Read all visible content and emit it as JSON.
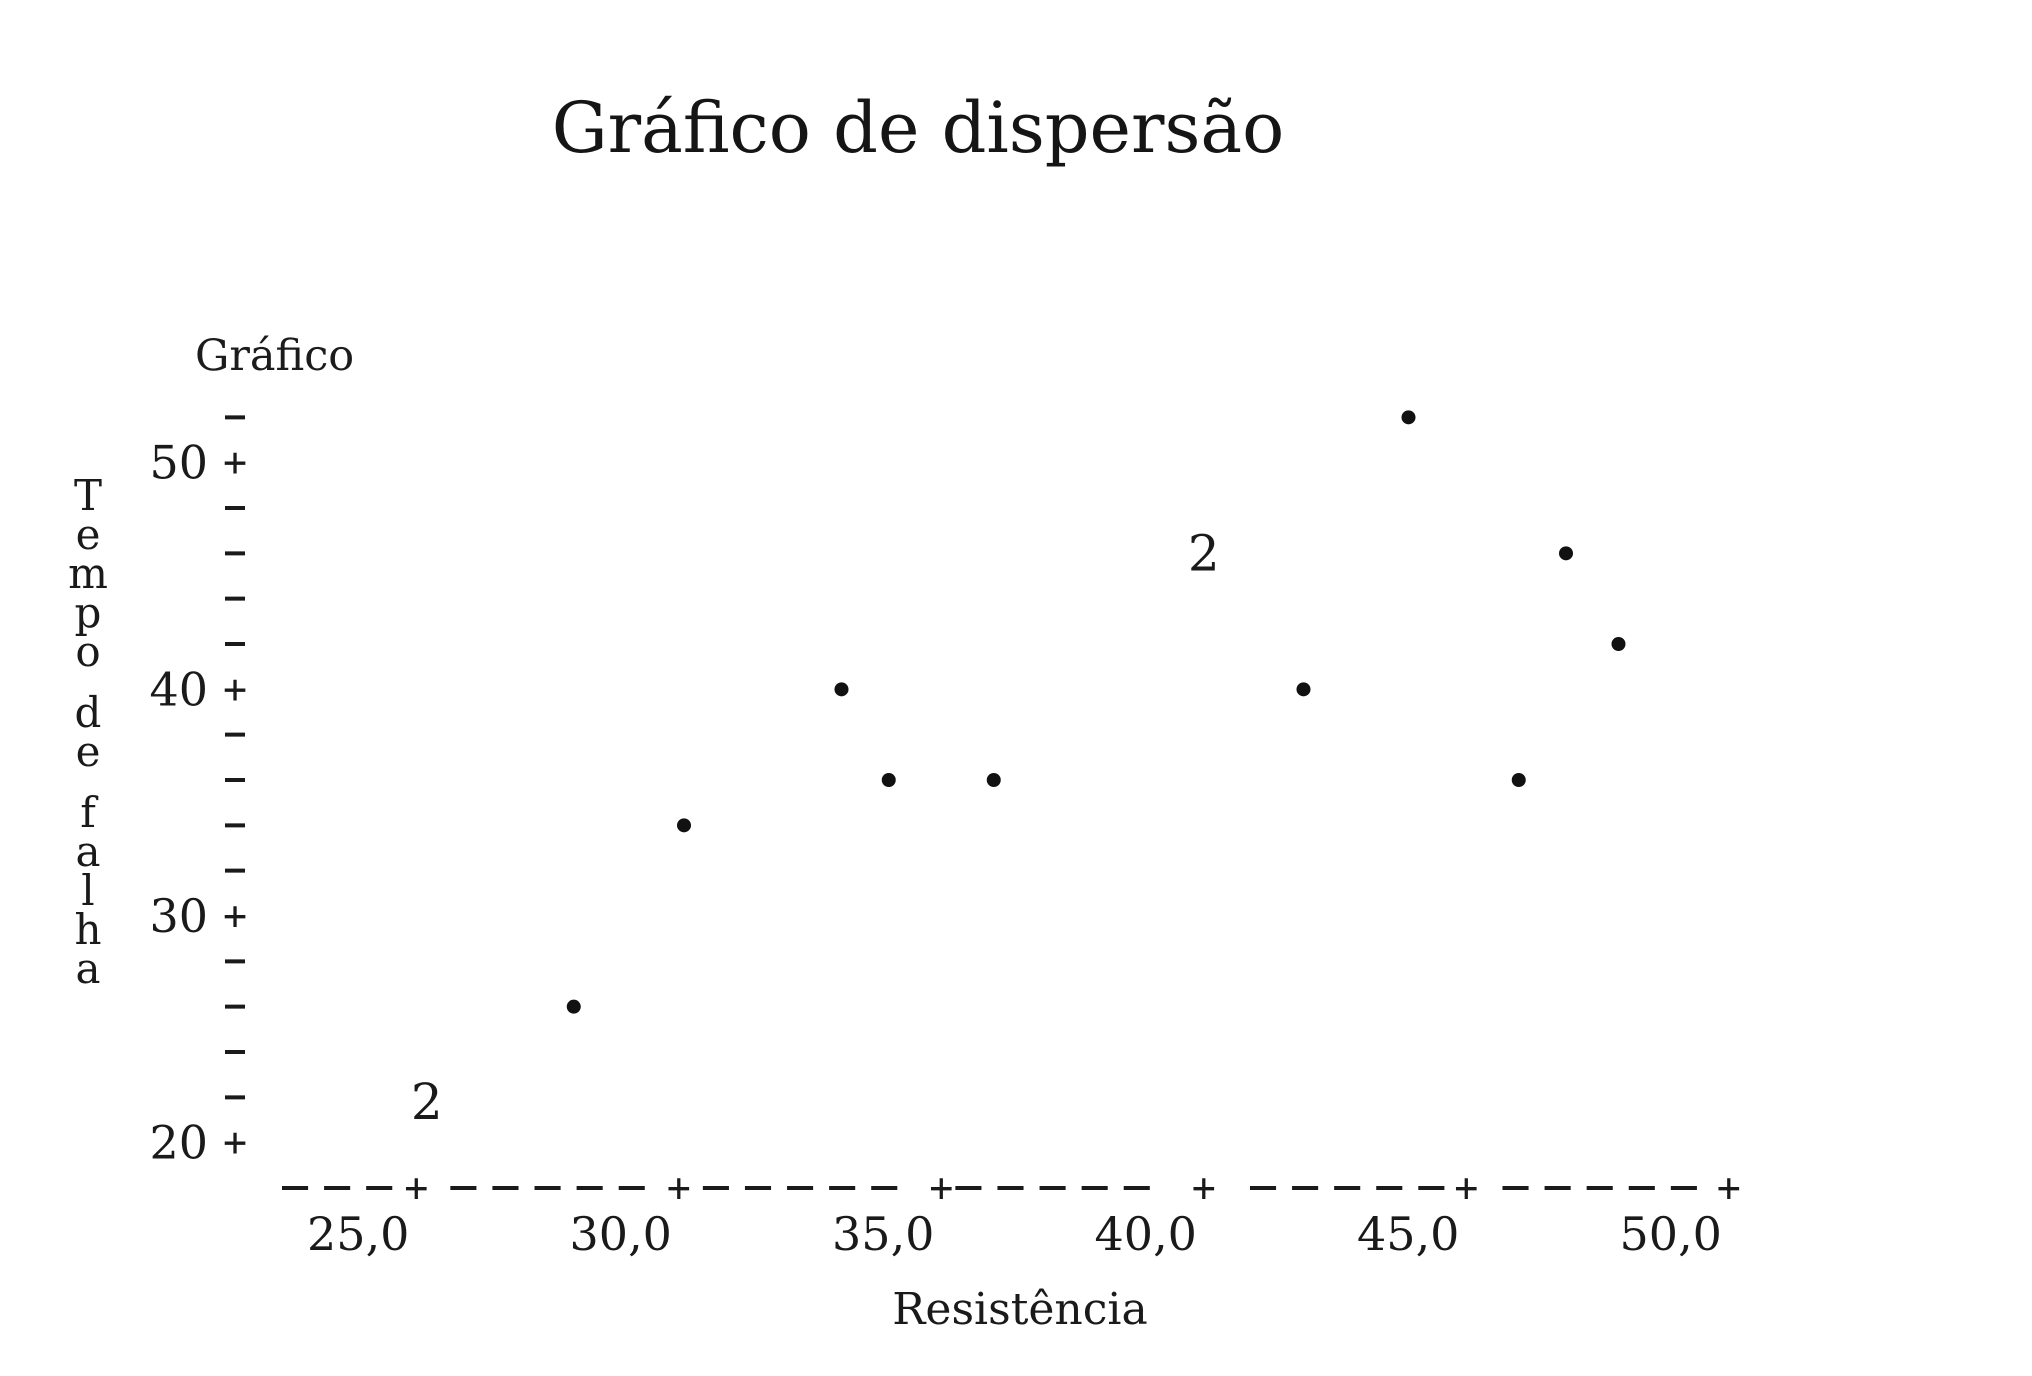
{
  "chart_data": {
    "type": "scatter",
    "title": "Gráfico de dispersão",
    "subtitle": "Gráfico",
    "xlabel": "Resistência",
    "ylabel": "Tempo de falha",
    "xlim": [
      22.5,
      50.5
    ],
    "ylim": [
      18,
      54
    ],
    "x_ticks": [
      {
        "value": 25,
        "label": "25,0"
      },
      {
        "value": 30,
        "label": "30,0"
      },
      {
        "value": 35,
        "label": "35,0"
      },
      {
        "value": 40,
        "label": "40,0"
      },
      {
        "value": 45,
        "label": "45,0"
      },
      {
        "value": 50,
        "label": "50,0"
      }
    ],
    "y_ticks": [
      {
        "value": 20,
        "label": "20"
      },
      {
        "value": 30,
        "label": "30"
      },
      {
        "value": 40,
        "label": "40"
      },
      {
        "value": 50,
        "label": "50"
      }
    ],
    "y_minor_ticks": [
      22,
      24,
      26,
      28,
      32,
      34,
      36,
      38,
      42,
      44,
      46,
      48,
      52
    ],
    "x_axis_dashes": 35,
    "points": [
      {
        "x": 25.2,
        "y": 21.8,
        "count": 2,
        "label": "2"
      },
      {
        "x": 28.0,
        "y": 26.0,
        "count": 1
      },
      {
        "x": 30.1,
        "y": 34.0,
        "count": 1
      },
      {
        "x": 33.1,
        "y": 40.0,
        "count": 1
      },
      {
        "x": 34.0,
        "y": 36.0,
        "count": 1
      },
      {
        "x": 36.0,
        "y": 36.0,
        "count": 1
      },
      {
        "x": 40.0,
        "y": 46.0,
        "count": 2,
        "label": "2"
      },
      {
        "x": 41.9,
        "y": 40.0,
        "count": 1
      },
      {
        "x": 43.9,
        "y": 52.0,
        "count": 1
      },
      {
        "x": 46.0,
        "y": 36.0,
        "count": 1
      },
      {
        "x": 46.9,
        "y": 46.0,
        "count": 1
      },
      {
        "x": 47.9,
        "y": 42.0,
        "count": 1
      }
    ]
  }
}
